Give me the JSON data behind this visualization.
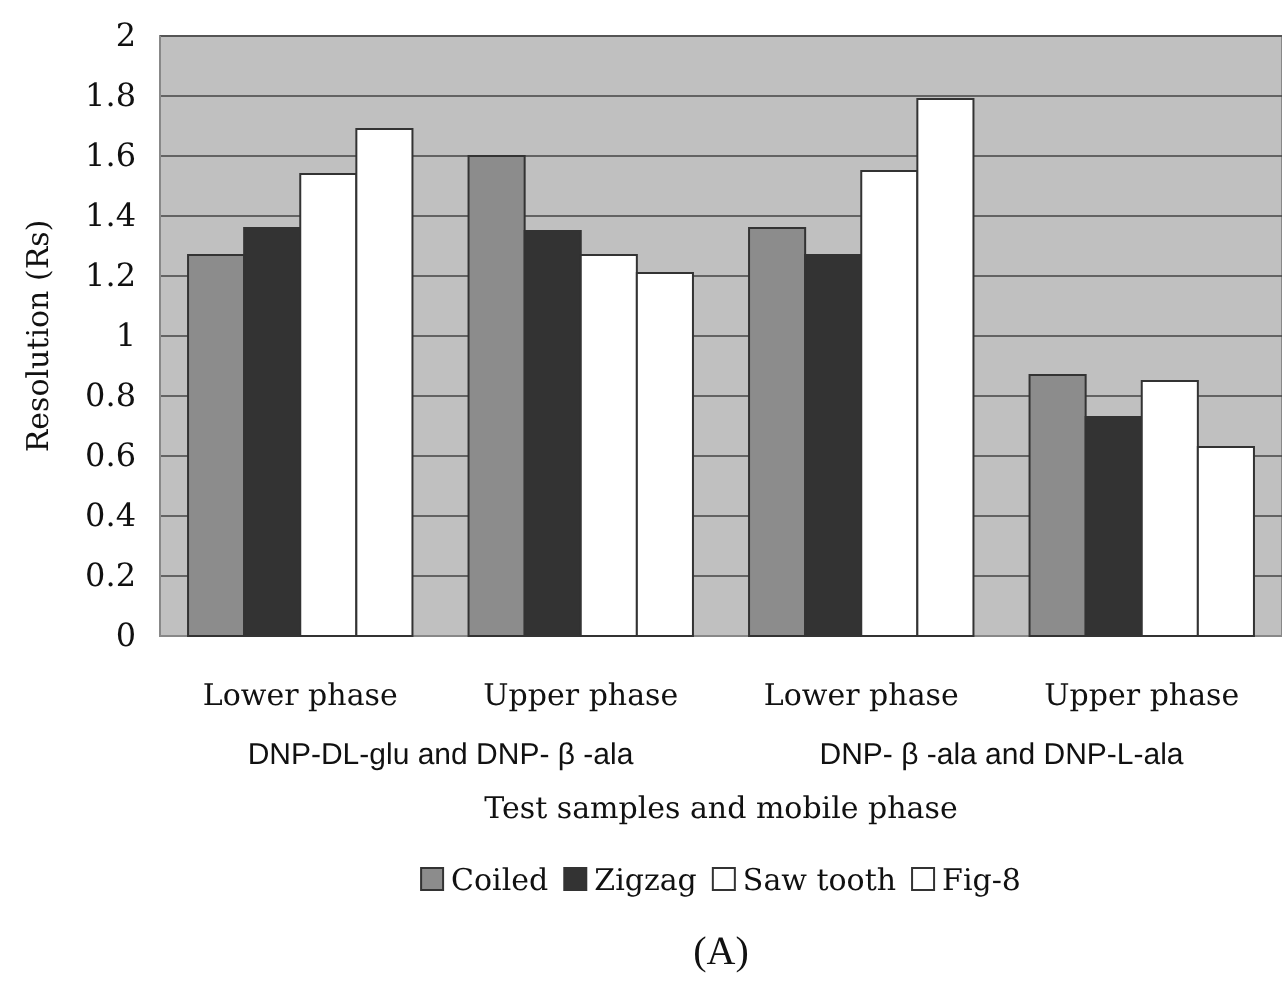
{
  "chart_data": {
    "type": "bar",
    "xlabel": "Test samples and mobile phase",
    "ylabel": "Resolution (Rs)",
    "categories": [
      "Lower phase",
      "Upper phase",
      "Lower phase",
      "Upper phase"
    ],
    "series": [
      {
        "name": "Coiled",
        "color": "#8c8c8c",
        "values": [
          1.27,
          1.6,
          1.36,
          0.87
        ]
      },
      {
        "name": "Zigzag",
        "color": "#333333",
        "values": [
          1.36,
          1.35,
          1.27,
          0.73
        ]
      },
      {
        "name": "Saw tooth",
        "color": "#ffffff",
        "values": [
          1.54,
          1.27,
          1.55,
          0.85
        ]
      },
      {
        "name": "Fig-8",
        "color": "#ffffff",
        "values": [
          1.69,
          1.21,
          1.79,
          0.63
        ]
      }
    ],
    "ylim": [
      0,
      2
    ],
    "yticks": [
      0,
      0.2,
      0.4,
      0.6,
      0.8,
      1,
      1.2,
      1.4,
      1.6,
      1.8,
      2
    ],
    "grid": "y",
    "legend": "bottom",
    "annotations": [
      "DNP-DL-glu and DNP- β -ala",
      "DNP- β -ala and DNP-L-ala",
      "(A)"
    ]
  }
}
